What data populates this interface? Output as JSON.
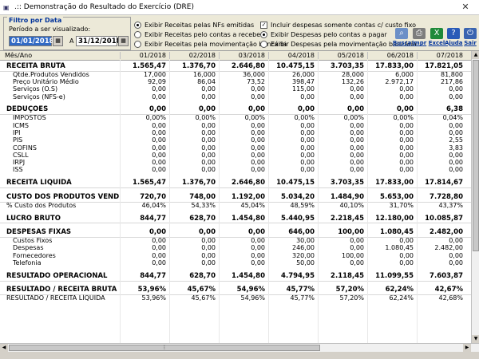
{
  "window": {
    "title": ".:: Demonstração do Resultado do Exercício (DRE)",
    "close": "✕"
  },
  "filter": {
    "legend": "Filtro por Data",
    "subtitle": "Período a ser visualizado:",
    "date_from": "01/01/2018",
    "date_to": "31/12/2018",
    "to_label": "A"
  },
  "options": {
    "r1": "Exibir Receitas pelas NFs emitidas",
    "r2": "Exibir Receitas pelo contas a receber",
    "r3": "Exibir Receitas pela movimentação bancária",
    "c1": "Incluir despesas somente contas c/ custo fixo",
    "r4": "Exibir Despesas pelo contas a pagar",
    "r5": "Exibir Despesas pela movimentação bancária"
  },
  "toolbar": {
    "busca": "Busca",
    "impr": "Impr",
    "excel": "Excel",
    "ajuda": "Ajuda",
    "sair": "Sair"
  },
  "columns": [
    "Mês/Ano",
    "01/2018",
    "02/2018",
    "03/2018",
    "04/2018",
    "05/2018",
    "06/2018",
    "07/2018"
  ],
  "rows": [
    {
      "type": "sec",
      "label": "RECEITA BRUTA",
      "v": [
        "1.565,47",
        "1.376,70",
        "2.646,80",
        "10.475,15",
        "3.703,35",
        "17.833,00",
        "17.821,05"
      ]
    },
    {
      "type": "sub",
      "label": "Qtde.Produtos Vendidos",
      "v": [
        "17,000",
        "16,000",
        "36,000",
        "26,000",
        "28,000",
        "6,000",
        "81,800"
      ]
    },
    {
      "type": "sub",
      "label": "Preço Unitário Médio",
      "v": [
        "92,09",
        "86,04",
        "73,52",
        "398,47",
        "132,26",
        "2.972,17",
        "217,86"
      ]
    },
    {
      "type": "sub",
      "label": "Serviços (O.S)",
      "v": [
        "0,00",
        "0,00",
        "0,00",
        "115,00",
        "0,00",
        "0,00",
        "0,00"
      ]
    },
    {
      "type": "sub",
      "label": "Serviços (NFS-e)",
      "v": [
        "0,00",
        "0,00",
        "0,00",
        "0,00",
        "0,00",
        "0,00",
        "0,00"
      ]
    },
    {
      "type": "gap"
    },
    {
      "type": "sec",
      "label": "DEDUÇÕES",
      "v": [
        "0,00",
        "0,00",
        "0,00",
        "0,00",
        "0,00",
        "0,00",
        "6,38"
      ]
    },
    {
      "type": "sub",
      "label": "IMPOSTOS",
      "v": [
        "0,00%",
        "0,00%",
        "0,00%",
        "0,00%",
        "0,00%",
        "0,00%",
        "0,04%"
      ]
    },
    {
      "type": "sub",
      "label": "ICMS",
      "v": [
        "0,00",
        "0,00",
        "0,00",
        "0,00",
        "0,00",
        "0,00",
        "0,00"
      ]
    },
    {
      "type": "sub",
      "label": "IPI",
      "v": [
        "0,00",
        "0,00",
        "0,00",
        "0,00",
        "0,00",
        "0,00",
        "0,00"
      ]
    },
    {
      "type": "sub",
      "label": "PIS",
      "v": [
        "0,00",
        "0,00",
        "0,00",
        "0,00",
        "0,00",
        "0,00",
        "2,55"
      ]
    },
    {
      "type": "sub",
      "label": "COFINS",
      "v": [
        "0,00",
        "0,00",
        "0,00",
        "0,00",
        "0,00",
        "0,00",
        "3,83"
      ]
    },
    {
      "type": "sub",
      "label": "CSLL",
      "v": [
        "0,00",
        "0,00",
        "0,00",
        "0,00",
        "0,00",
        "0,00",
        "0,00"
      ]
    },
    {
      "type": "sub",
      "label": "IRPJ",
      "v": [
        "0,00",
        "0,00",
        "0,00",
        "0,00",
        "0,00",
        "0,00",
        "0,00"
      ]
    },
    {
      "type": "sub",
      "label": "ISS",
      "v": [
        "0,00",
        "0,00",
        "0,00",
        "0,00",
        "0,00",
        "0,00",
        "0,00"
      ]
    },
    {
      "type": "gap"
    },
    {
      "type": "sec",
      "label": "RECEITA LÍQUIDA",
      "v": [
        "1.565,47",
        "1.376,70",
        "2.646,80",
        "10.475,15",
        "3.703,35",
        "17.833,00",
        "17.814,67"
      ]
    },
    {
      "type": "gap"
    },
    {
      "type": "sec",
      "label": "CUSTO DOS PRODUTOS VENDI...",
      "v": [
        "720,70",
        "748,00",
        "1.192,00",
        "5.034,20",
        "1.484,90",
        "5.653,00",
        "7.728,80"
      ]
    },
    {
      "type": "plain",
      "label": "% Custo dos Produtos",
      "v": [
        "46,04%",
        "54,33%",
        "45,04%",
        "48,59%",
        "40,10%",
        "31,70%",
        "43,37%"
      ]
    },
    {
      "type": "gap"
    },
    {
      "type": "sec",
      "label": "LUCRO BRUTO",
      "v": [
        "844,77",
        "628,70",
        "1.454,80",
        "5.440,95",
        "2.218,45",
        "12.180,00",
        "10.085,87"
      ]
    },
    {
      "type": "gap"
    },
    {
      "type": "sec",
      "label": "DESPESAS FIXAS",
      "v": [
        "0,00",
        "0,00",
        "0,00",
        "646,00",
        "100,00",
        "1.080,45",
        "2.482,00"
      ]
    },
    {
      "type": "sub",
      "label": "Custos Fixos",
      "v": [
        "0,00",
        "0,00",
        "0,00",
        "30,00",
        "0,00",
        "0,00",
        "0,00"
      ]
    },
    {
      "type": "sub",
      "label": "Despesas",
      "v": [
        "0,00",
        "0,00",
        "0,00",
        "246,00",
        "0,00",
        "1.080,45",
        "2.482,00"
      ]
    },
    {
      "type": "sub",
      "label": "Fornecedores",
      "v": [
        "0,00",
        "0,00",
        "0,00",
        "320,00",
        "100,00",
        "0,00",
        "0,00"
      ]
    },
    {
      "type": "sub",
      "label": "Telefonia",
      "v": [
        "0,00",
        "0,00",
        "0,00",
        "50,00",
        "0,00",
        "0,00",
        "0,00"
      ]
    },
    {
      "type": "gap"
    },
    {
      "type": "sec",
      "label": "RESULTADO OPERACIONAL",
      "v": [
        "844,77",
        "628,70",
        "1.454,80",
        "4.794,95",
        "2.118,45",
        "11.099,55",
        "7.603,87"
      ]
    },
    {
      "type": "gap"
    },
    {
      "type": "sec",
      "label": "RESULTADO / RECEITA BRUTA",
      "v": [
        "53,96%",
        "45,67%",
        "54,96%",
        "45,77%",
        "57,20%",
        "62,24%",
        "42,67%"
      ]
    },
    {
      "type": "plain",
      "label": "RESULTADO / RECEITA LÍQUIDA",
      "v": [
        "53,96%",
        "45,67%",
        "54,96%",
        "45,77%",
        "57,20%",
        "62,24%",
        "42,68%"
      ]
    }
  ]
}
